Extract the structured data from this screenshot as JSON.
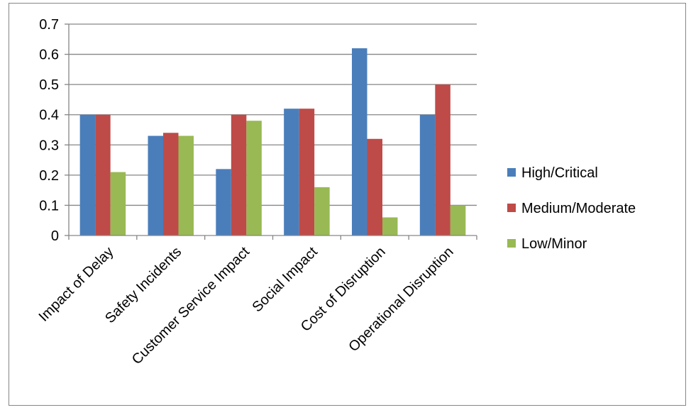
{
  "chart_data": {
    "type": "bar",
    "categories": [
      "Impact of Delay",
      "Safety Incidents",
      "Customer Service Impact",
      "Social Impact",
      "Cost of Disruption",
      "Operational Disruption"
    ],
    "series": [
      {
        "name": "High/Critical",
        "color": "#4a7ebb",
        "values": [
          0.4,
          0.33,
          0.22,
          0.42,
          0.62,
          0.4
        ]
      },
      {
        "name": "Medium/Moderate",
        "color": "#be4b48",
        "values": [
          0.4,
          0.34,
          0.4,
          0.42,
          0.32,
          0.5
        ]
      },
      {
        "name": "Low/Minor",
        "color": "#98b954",
        "values": [
          0.21,
          0.33,
          0.38,
          0.16,
          0.06,
          0.1
        ]
      }
    ],
    "ylim": [
      0,
      0.7
    ],
    "yticks": [
      "0",
      "0.1",
      "0.2",
      "0.3",
      "0.4",
      "0.5",
      "0.6",
      "0.7"
    ],
    "grid": true,
    "legend_position": "right"
  }
}
